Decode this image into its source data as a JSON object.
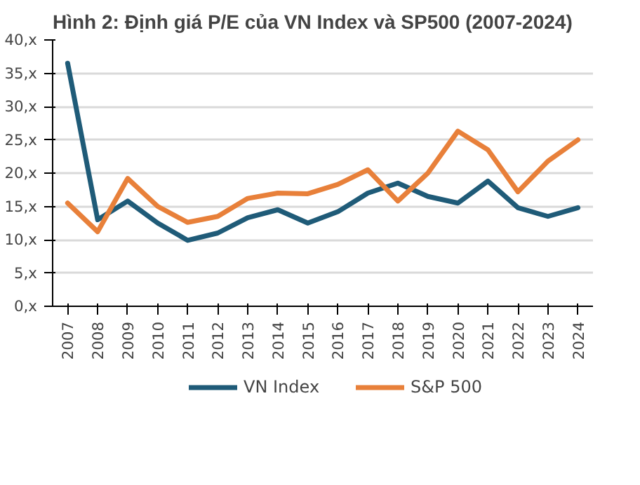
{
  "chart_data": {
    "type": "line",
    "title": "Hình 2: Định giá P/E của VN Index và SP500 (2007-2024)",
    "categories": [
      "2007",
      "2008",
      "2009",
      "2010",
      "2011",
      "2012",
      "2013",
      "2014",
      "2015",
      "2016",
      "2017",
      "2018",
      "2019",
      "2020",
      "2021",
      "2022",
      "2023",
      "2024"
    ],
    "series": [
      {
        "name": "VN Index",
        "color": "#1f5b78",
        "values": [
          36.5,
          13,
          15.8,
          12.5,
          9.9,
          11,
          13.3,
          14.5,
          12.5,
          14.2,
          17,
          18.5,
          16.5,
          15.5,
          18.8,
          14.8,
          13.5,
          14.8
        ]
      },
      {
        "name": "S&P 500",
        "color": "#e8803a",
        "values": [
          15.5,
          11.2,
          19.2,
          15,
          12.6,
          13.5,
          16.2,
          17,
          16.9,
          18.3,
          20.5,
          15.8,
          20,
          26.3,
          23.5,
          17.2,
          21.8,
          25
        ]
      }
    ],
    "ylim": [
      0,
      40
    ],
    "yticks": [
      {
        "value": 0,
        "label": "0,x"
      },
      {
        "value": 5,
        "label": "5,x"
      },
      {
        "value": 10,
        "label": "10,x"
      },
      {
        "value": 15,
        "label": "15,x"
      },
      {
        "value": 20,
        "label": "20,x"
      },
      {
        "value": 25,
        "label": "25,x"
      },
      {
        "value": 30,
        "label": "30,x"
      },
      {
        "value": 35,
        "label": "35,x"
      },
      {
        "value": 40,
        "label": "40,x"
      }
    ],
    "grid": "y",
    "legend": "bottom",
    "marker": "none",
    "line_style": "solid"
  }
}
